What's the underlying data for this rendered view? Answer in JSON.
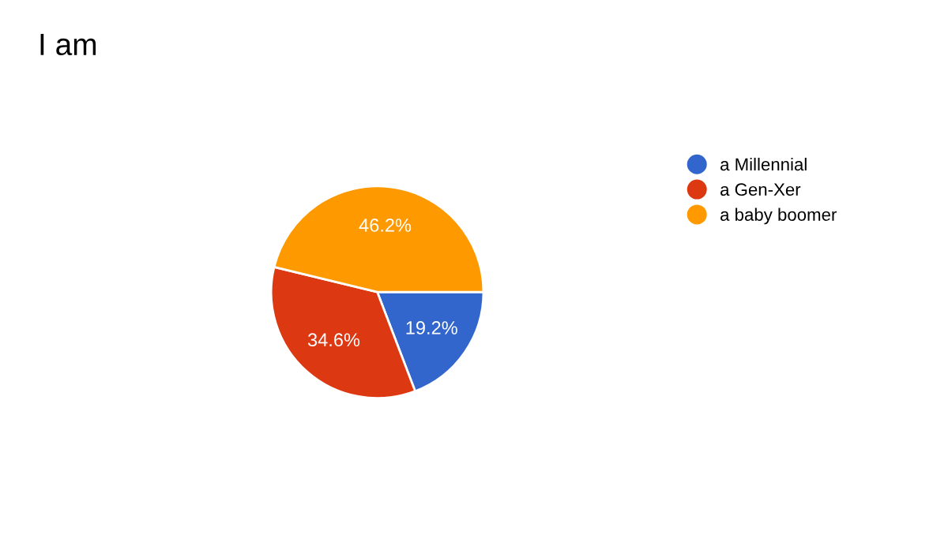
{
  "chart_data": {
    "type": "pie",
    "title": "I am",
    "categories": [
      "a Millennial",
      "a Gen-Xer",
      "a baby boomer"
    ],
    "values": [
      19.2,
      34.6,
      46.2
    ],
    "colors": [
      "#3366cc",
      "#dc3912",
      "#ff9900"
    ],
    "value_labels": [
      "19.2%",
      "34.6%",
      "46.2%"
    ],
    "legend": "right"
  }
}
